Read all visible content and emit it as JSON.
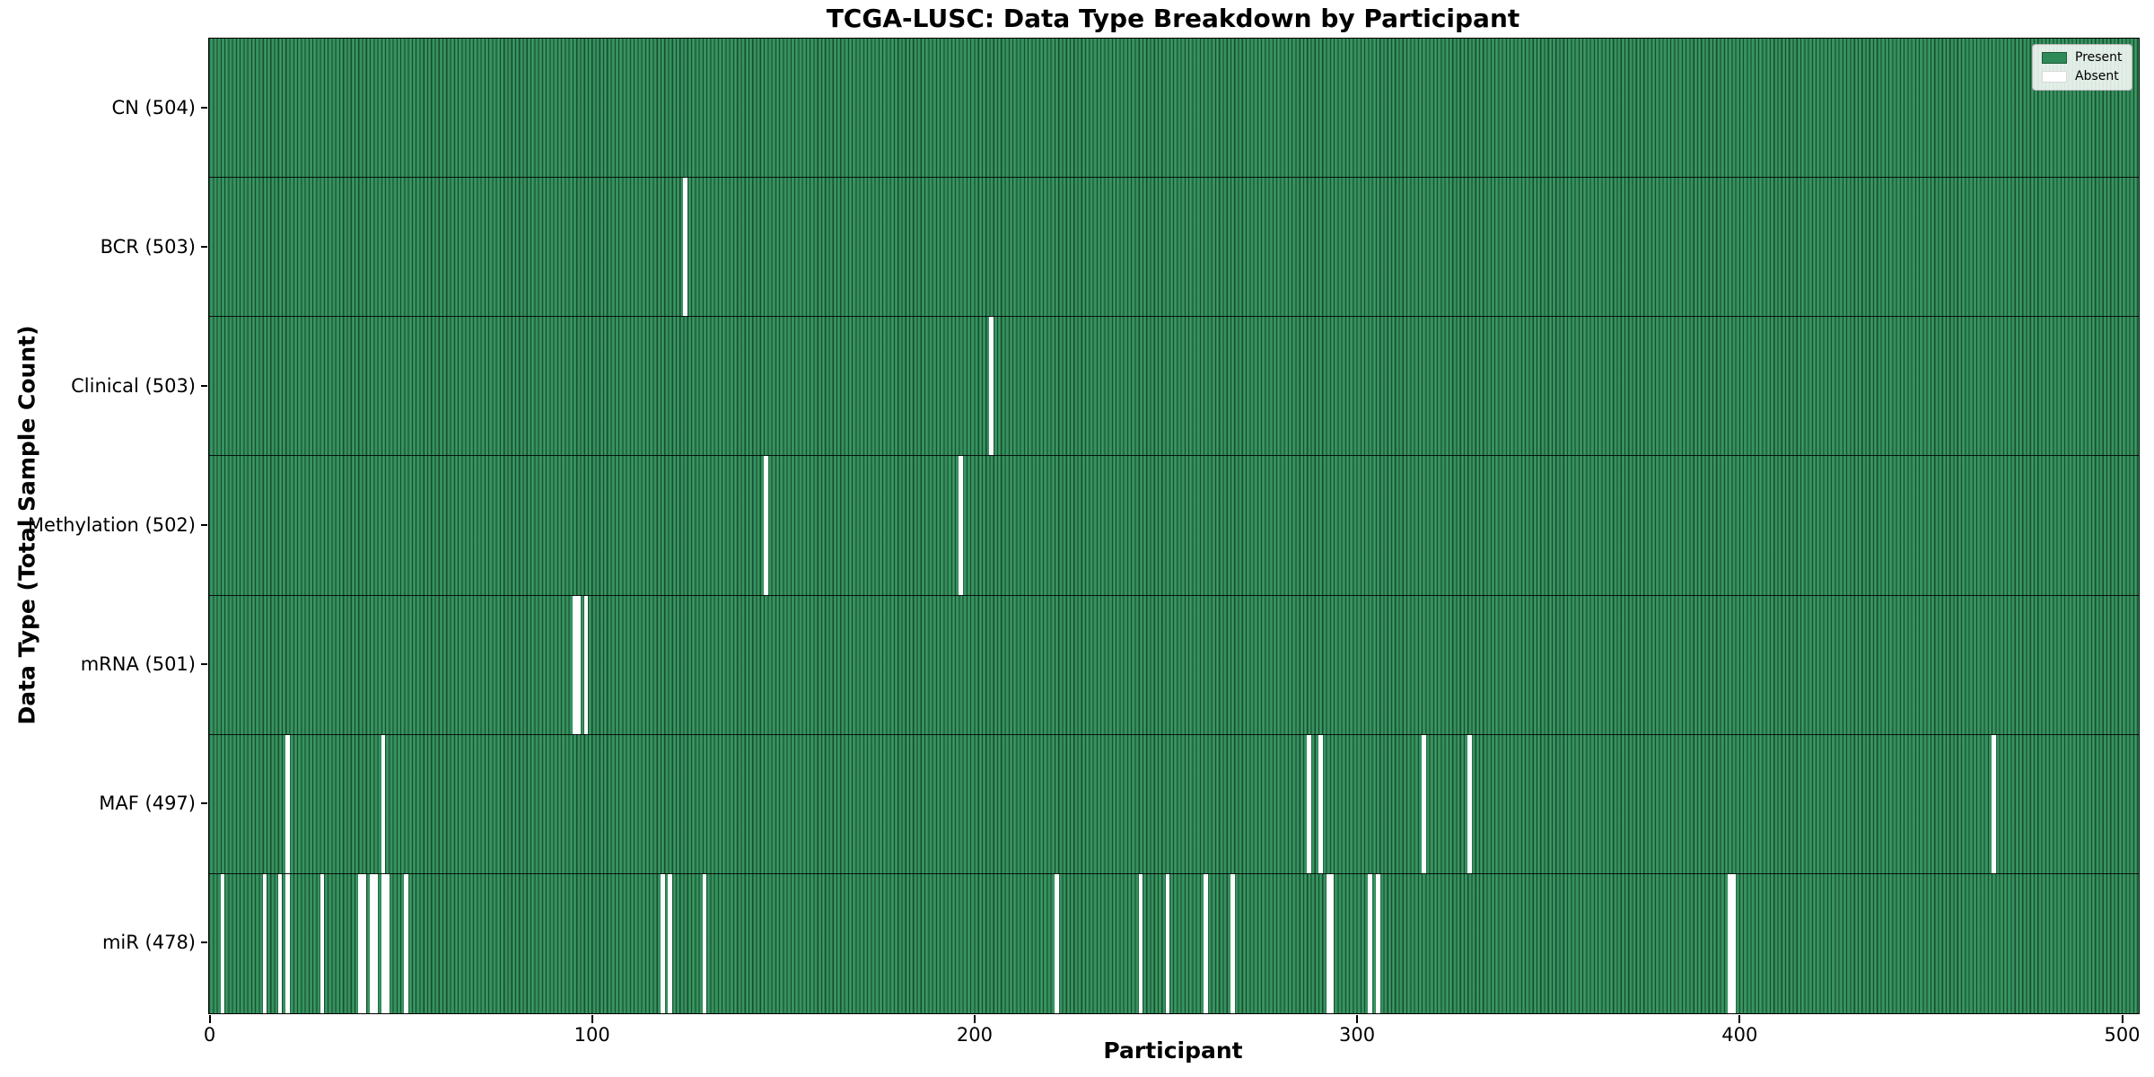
{
  "title": "TCGA-LUSC: Data Type Breakdown by Participant",
  "chart_data": {
    "type": "heatmap",
    "title": "TCGA-LUSC: Data Type Breakdown by Participant",
    "xlabel": "Participant",
    "ylabel": "Data Type (Total Sample Count)",
    "x_ticks": [
      0,
      100,
      200,
      300,
      400,
      500
    ],
    "xlim": [
      0,
      504
    ],
    "n_participants": 504,
    "grid": false,
    "legend_position": "upper right",
    "legend": [
      {
        "label": "Present",
        "color": "#2e8b57"
      },
      {
        "label": "Absent",
        "color": "#ffffff"
      }
    ],
    "value_encoding": {
      "present": 1,
      "absent": 0
    },
    "rows": [
      {
        "label": "CN (504)",
        "data_type": "CN",
        "total_samples": 504,
        "absent_participants": []
      },
      {
        "label": "BCR (503)",
        "data_type": "BCR",
        "total_samples": 503,
        "absent_participants": [
          124
        ]
      },
      {
        "label": "Clinical (503)",
        "data_type": "Clinical",
        "total_samples": 503,
        "absent_participants": [
          204
        ]
      },
      {
        "label": "Methylation (502)",
        "data_type": "Methylation",
        "total_samples": 502,
        "absent_participants": [
          145,
          196
        ]
      },
      {
        "label": "mRNA (501)",
        "data_type": "mRNA",
        "total_samples": 501,
        "absent_participants": [
          95,
          96,
          98
        ]
      },
      {
        "label": "MAF (497)",
        "data_type": "MAF",
        "total_samples": 497,
        "absent_participants": [
          20,
          45,
          287,
          290,
          317,
          329,
          466
        ]
      },
      {
        "label": "miR (478)",
        "data_type": "miR",
        "total_samples": 478,
        "absent_participants": [
          3,
          14,
          18,
          20,
          29,
          39,
          40,
          42,
          43,
          45,
          46,
          51,
          118,
          120,
          129,
          221,
          243,
          250,
          260,
          267,
          292,
          293,
          303,
          305,
          397,
          398
        ]
      }
    ],
    "colors": {
      "present_fill": "#2e8b57",
      "absent_fill": "#ffffff",
      "bar_edge": "rgba(8,28,18,0.55)",
      "row_divider": "#000000",
      "axis": "#000000"
    }
  }
}
